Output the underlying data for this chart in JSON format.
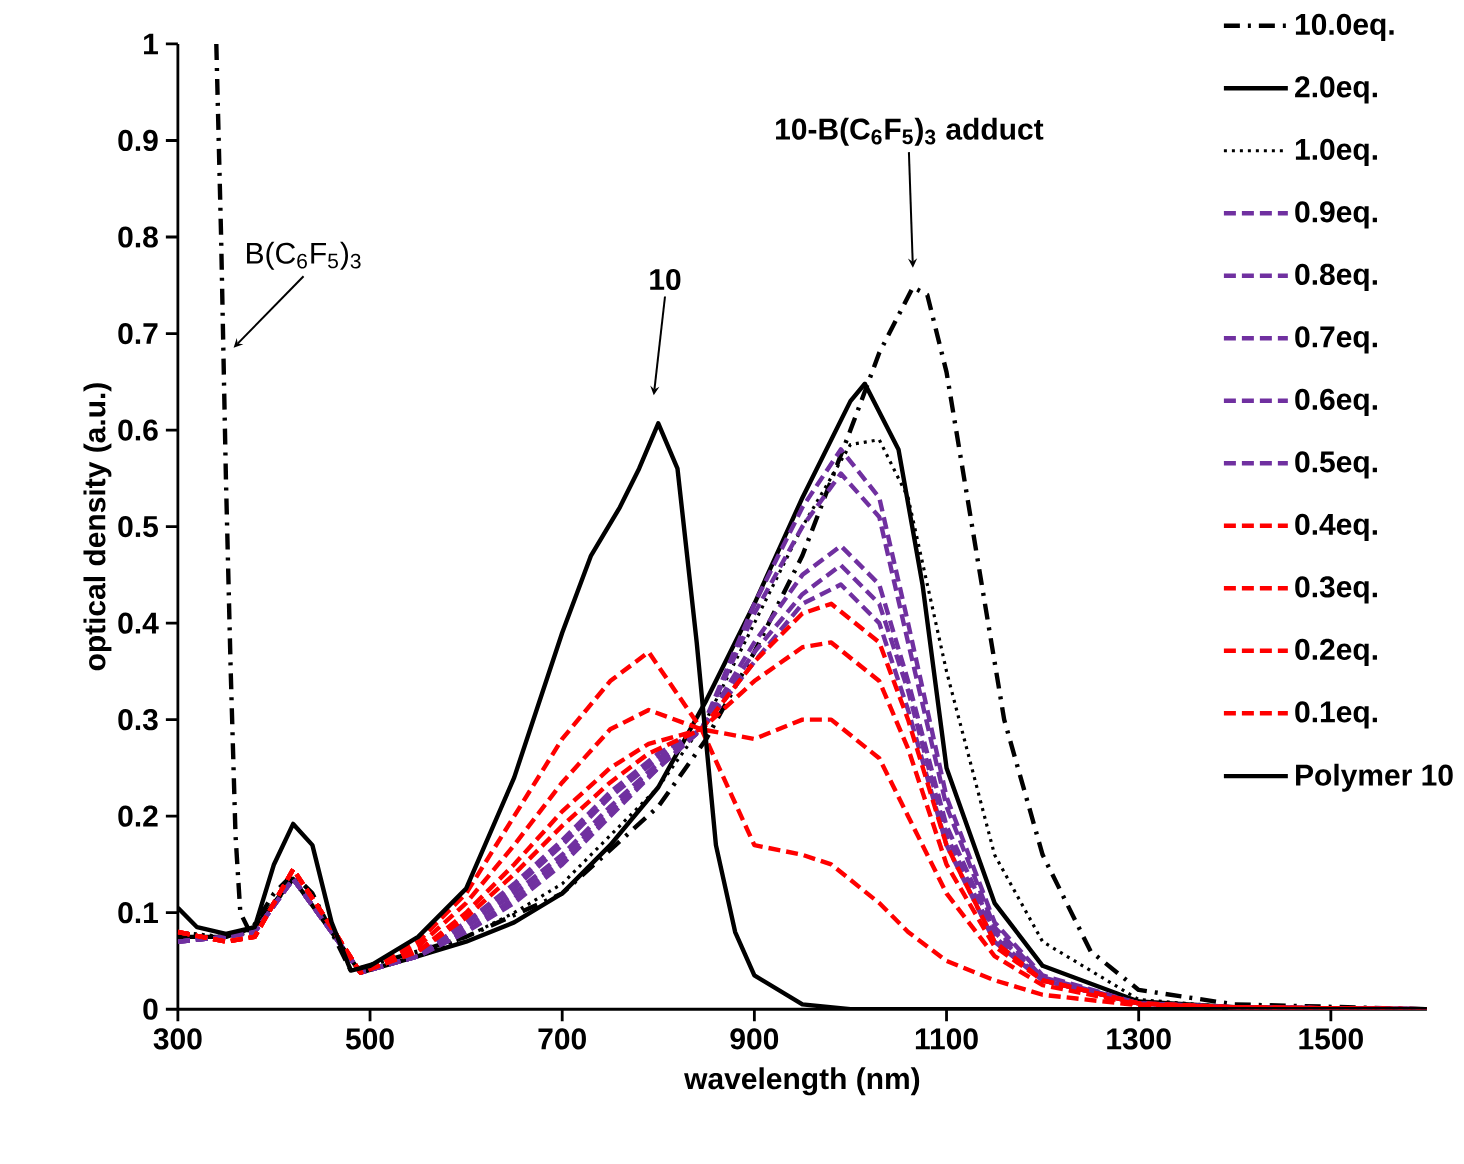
{
  "chart_data": {
    "type": "line",
    "xlabel": "wavelength (nm)",
    "ylabel": "optical density (a.u.)",
    "xlim": [
      300,
      1600
    ],
    "ylim": [
      0,
      1
    ],
    "xticks": [
      300,
      500,
      700,
      900,
      1100,
      1300,
      1500
    ],
    "yticks": [
      0,
      0.1,
      0.2,
      0.3,
      0.4,
      0.5,
      0.6,
      0.7,
      0.8,
      0.9,
      1
    ],
    "legend": "top right",
    "annotations": [
      {
        "text": "B(C$_{6}$F$_{5}$)$_{3}$",
        "x": 358,
        "y": 0.677
      },
      "10",
      {
        "text": "10-B(C$_{6}$F$_{5}$)$_{3}$ adduct",
        "x": 1065,
        "y": 0.76
      }
    ],
    "series": [
      {
        "name": "10.0eq.",
        "color": "#000000",
        "line_style": "dashdot",
        "x": [
          340,
          345,
          350,
          355,
          360,
          365,
          375,
          400,
          420,
          440,
          480,
          550,
          600,
          700,
          800,
          850,
          900,
          950,
          1000,
          1030,
          1065,
          1080,
          1100,
          1130,
          1160,
          1200,
          1250,
          1300,
          1400,
          1600
        ],
        "values": [
          1.0,
          0.8,
          0.55,
          0.35,
          0.18,
          0.1,
          0.08,
          0.12,
          0.14,
          0.12,
          0.04,
          0.06,
          0.075,
          0.12,
          0.21,
          0.28,
          0.37,
          0.47,
          0.6,
          0.68,
          0.748,
          0.74,
          0.66,
          0.48,
          0.3,
          0.16,
          0.06,
          0.02,
          0.005,
          0
        ]
      },
      {
        "name": "2.0eq.",
        "color": "#000000",
        "line_style": "solid",
        "x": [
          300,
          350,
          380,
          420,
          460,
          490,
          550,
          600,
          650,
          700,
          750,
          800,
          850,
          900,
          950,
          1000,
          1015,
          1050,
          1075,
          1100,
          1150,
          1200,
          1300,
          1400,
          1600
        ],
        "values": [
          0.075,
          0.075,
          0.085,
          0.135,
          0.08,
          0.038,
          0.055,
          0.07,
          0.09,
          0.12,
          0.17,
          0.23,
          0.32,
          0.42,
          0.53,
          0.63,
          0.648,
          0.58,
          0.44,
          0.25,
          0.11,
          0.045,
          0.008,
          0.002,
          0
        ]
      },
      {
        "name": "1.0eq.",
        "color": "#000000",
        "line_style": "dotted",
        "x": [
          300,
          350,
          380,
          420,
          460,
          490,
          550,
          600,
          650,
          700,
          750,
          800,
          850,
          900,
          950,
          1000,
          1030,
          1060,
          1100,
          1150,
          1200,
          1300,
          1400,
          1600
        ],
        "values": [
          0.08,
          0.075,
          0.08,
          0.135,
          0.08,
          0.038,
          0.055,
          0.075,
          0.1,
          0.13,
          0.18,
          0.23,
          0.3,
          0.4,
          0.5,
          0.585,
          0.59,
          0.53,
          0.35,
          0.16,
          0.07,
          0.01,
          0.002,
          0
        ]
      },
      {
        "name": "0.9eq.",
        "color": "#7030a0",
        "line_style": "dashed",
        "x": [
          300,
          350,
          380,
          420,
          460,
          490,
          550,
          600,
          650,
          700,
          750,
          800,
          845,
          900,
          950,
          990,
          1030,
          1060,
          1100,
          1150,
          1200,
          1300,
          1400,
          1600
        ],
        "values": [
          0.07,
          0.075,
          0.08,
          0.135,
          0.08,
          0.038,
          0.055,
          0.08,
          0.11,
          0.15,
          0.2,
          0.25,
          0.29,
          0.42,
          0.52,
          0.58,
          0.53,
          0.4,
          0.22,
          0.09,
          0.035,
          0.006,
          0.002,
          0
        ]
      },
      {
        "name": "0.8eq.",
        "color": "#7030a0",
        "line_style": "dashed",
        "x": [
          300,
          350,
          380,
          420,
          460,
          490,
          550,
          600,
          650,
          700,
          750,
          800,
          845,
          900,
          950,
          990,
          1030,
          1060,
          1100,
          1150,
          1200,
          1300,
          1400,
          1600
        ],
        "values": [
          0.07,
          0.075,
          0.08,
          0.135,
          0.08,
          0.038,
          0.055,
          0.08,
          0.115,
          0.155,
          0.205,
          0.25,
          0.29,
          0.41,
          0.5,
          0.555,
          0.51,
          0.38,
          0.21,
          0.085,
          0.033,
          0.006,
          0.002,
          0
        ]
      },
      {
        "name": "0.7eq.",
        "color": "#7030a0",
        "line_style": "dashed",
        "x": [
          300,
          350,
          380,
          420,
          460,
          490,
          550,
          600,
          650,
          700,
          750,
          800,
          845,
          900,
          950,
          990,
          1030,
          1060,
          1100,
          1150,
          1200,
          1300,
          1400,
          1600
        ],
        "values": [
          0.07,
          0.075,
          0.08,
          0.135,
          0.08,
          0.038,
          0.055,
          0.085,
          0.12,
          0.16,
          0.21,
          0.255,
          0.29,
          0.38,
          0.45,
          0.48,
          0.44,
          0.34,
          0.19,
          0.08,
          0.03,
          0.006,
          0.002,
          0
        ]
      },
      {
        "name": "0.6eq.",
        "color": "#7030a0",
        "line_style": "dashed",
        "x": [
          300,
          350,
          380,
          420,
          460,
          490,
          550,
          600,
          650,
          700,
          750,
          800,
          845,
          900,
          950,
          990,
          1030,
          1060,
          1100,
          1150,
          1200,
          1300,
          1400,
          1600
        ],
        "values": [
          0.07,
          0.075,
          0.08,
          0.135,
          0.08,
          0.038,
          0.055,
          0.09,
          0.125,
          0.17,
          0.22,
          0.26,
          0.29,
          0.37,
          0.43,
          0.46,
          0.42,
          0.33,
          0.18,
          0.075,
          0.03,
          0.006,
          0.002,
          0
        ]
      },
      {
        "name": "0.5eq.",
        "color": "#7030a0",
        "line_style": "dashed",
        "x": [
          300,
          350,
          380,
          420,
          460,
          490,
          550,
          600,
          650,
          700,
          750,
          800,
          845,
          900,
          950,
          990,
          1030,
          1060,
          1100,
          1150,
          1200,
          1300,
          1400,
          1600
        ],
        "values": [
          0.07,
          0.075,
          0.08,
          0.135,
          0.08,
          0.038,
          0.055,
          0.09,
          0.13,
          0.175,
          0.225,
          0.265,
          0.29,
          0.36,
          0.42,
          0.44,
          0.4,
          0.31,
          0.17,
          0.07,
          0.03,
          0.006,
          0.002,
          0
        ]
      },
      {
        "name": "0.4eq.",
        "color": "#ff0000",
        "line_style": "dashed",
        "x": [
          300,
          350,
          380,
          420,
          460,
          490,
          550,
          600,
          650,
          700,
          750,
          790,
          845,
          900,
          950,
          980,
          1030,
          1060,
          1100,
          1150,
          1200,
          1300,
          1400,
          1600
        ],
        "values": [
          0.08,
          0.07,
          0.075,
          0.145,
          0.085,
          0.038,
          0.06,
          0.095,
          0.14,
          0.19,
          0.235,
          0.265,
          0.29,
          0.36,
          0.41,
          0.42,
          0.38,
          0.3,
          0.17,
          0.07,
          0.03,
          0.006,
          0.002,
          0
        ]
      },
      {
        "name": "0.3eq.",
        "color": "#ff0000",
        "line_style": "dashed",
        "x": [
          300,
          350,
          380,
          420,
          460,
          490,
          550,
          600,
          650,
          700,
          750,
          790,
          845,
          900,
          950,
          980,
          1030,
          1060,
          1100,
          1150,
          1200,
          1300,
          1400,
          1600
        ],
        "values": [
          0.08,
          0.07,
          0.075,
          0.145,
          0.085,
          0.038,
          0.06,
          0.1,
          0.15,
          0.205,
          0.25,
          0.275,
          0.29,
          0.34,
          0.375,
          0.38,
          0.34,
          0.27,
          0.15,
          0.065,
          0.03,
          0.006,
          0.002,
          0
        ]
      },
      {
        "name": "0.2eq.",
        "color": "#ff0000",
        "line_style": "dashed",
        "x": [
          300,
          350,
          380,
          420,
          460,
          490,
          550,
          600,
          650,
          700,
          750,
          790,
          845,
          900,
          950,
          980,
          1030,
          1060,
          1100,
          1150,
          1200,
          1300,
          1400,
          1600
        ],
        "values": [
          0.08,
          0.07,
          0.075,
          0.145,
          0.085,
          0.038,
          0.065,
          0.11,
          0.17,
          0.235,
          0.29,
          0.31,
          0.29,
          0.28,
          0.3,
          0.3,
          0.26,
          0.2,
          0.12,
          0.055,
          0.025,
          0.005,
          0.002,
          0
        ]
      },
      {
        "name": "0.1eq.",
        "color": "#ff0000",
        "line_style": "dashed",
        "x": [
          300,
          350,
          380,
          420,
          460,
          490,
          550,
          600,
          650,
          700,
          750,
          790,
          845,
          900,
          950,
          980,
          1030,
          1060,
          1100,
          1150,
          1200,
          1300,
          1400,
          1600
        ],
        "values": [
          0.08,
          0.07,
          0.075,
          0.145,
          0.085,
          0.038,
          0.07,
          0.12,
          0.2,
          0.28,
          0.34,
          0.37,
          0.29,
          0.17,
          0.16,
          0.15,
          0.11,
          0.08,
          0.05,
          0.03,
          0.015,
          0.004,
          0.001,
          0
        ]
      },
      {
        "name": "Polymer 10",
        "color": "#000000",
        "line_style": "solid",
        "x": [
          300,
          320,
          350,
          380,
          400,
          420,
          440,
          460,
          480,
          500,
          550,
          600,
          650,
          700,
          730,
          760,
          780,
          800,
          820,
          840,
          860,
          880,
          900,
          950,
          1000,
          1600
        ],
        "values": [
          0.105,
          0.085,
          0.078,
          0.085,
          0.15,
          0.192,
          0.17,
          0.09,
          0.04,
          0.045,
          0.075,
          0.125,
          0.24,
          0.39,
          0.47,
          0.52,
          0.56,
          0.607,
          0.56,
          0.38,
          0.17,
          0.08,
          0.035,
          0.005,
          0,
          0
        ]
      }
    ]
  }
}
